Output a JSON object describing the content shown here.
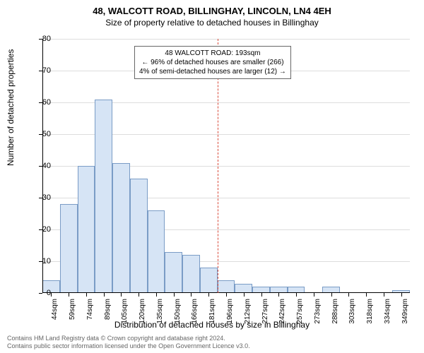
{
  "title": "48, WALCOTT ROAD, BILLINGHAY, LINCOLN, LN4 4EH",
  "subtitle": "Size of property relative to detached houses in Billinghay",
  "y_axis_label": "Number of detached properties",
  "x_axis_label": "Distribution of detached houses by size in Billinghay",
  "chart": {
    "ylim": [
      0,
      80
    ],
    "ytick_step": 10,
    "background_color": "#ffffff",
    "grid_color": "#dddddd",
    "axis_color": "#000000",
    "bar_fill": "#d6e4f5",
    "bar_border": "#7a9cc6",
    "bar_width_ratio": 1.0,
    "x_categories": [
      "44sqm",
      "59sqm",
      "74sqm",
      "89sqm",
      "105sqm",
      "120sqm",
      "135sqm",
      "150sqm",
      "166sqm",
      "181sqm",
      "196sqm",
      "212sqm",
      "227sqm",
      "242sqm",
      "257sqm",
      "273sqm",
      "288sqm",
      "303sqm",
      "318sqm",
      "334sqm",
      "349sqm"
    ],
    "values": [
      4,
      28,
      40,
      61,
      41,
      36,
      26,
      13,
      12,
      8,
      4,
      3,
      2,
      2,
      2,
      0,
      2,
      0,
      0,
      0,
      1
    ],
    "reference_line_index": 10,
    "reference_line_color": "#d94a3a"
  },
  "annotation": {
    "line1": "48 WALCOTT ROAD: 193sqm",
    "line2": "← 96% of detached houses are smaller (266)",
    "line3": "4% of semi-detached houses are larger (12) →"
  },
  "footer": {
    "line1": "Contains HM Land Registry data © Crown copyright and database right 2024.",
    "line2": "Contains public sector information licensed under the Open Government Licence v3.0."
  }
}
